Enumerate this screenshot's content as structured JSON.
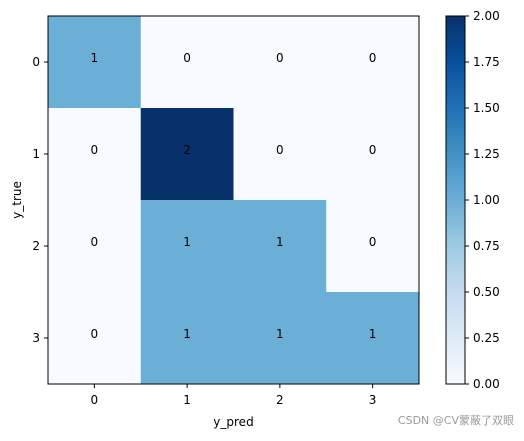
{
  "chart_data": {
    "type": "heatmap",
    "title": "",
    "xlabel": "y_pred",
    "ylabel": "y_true",
    "x_categories": [
      "0",
      "1",
      "2",
      "3"
    ],
    "y_categories": [
      "0",
      "1",
      "2",
      "3"
    ],
    "values": [
      [
        1,
        0,
        0,
        0
      ],
      [
        0,
        2,
        0,
        0
      ],
      [
        0,
        1,
        1,
        0
      ],
      [
        0,
        1,
        1,
        1
      ]
    ],
    "cell_labels": [
      [
        "1",
        "0",
        "0",
        "0"
      ],
      [
        "0",
        "2",
        "0",
        "0"
      ],
      [
        "0",
        "1",
        "1",
        "0"
      ],
      [
        "0",
        "1",
        "1",
        "1"
      ]
    ],
    "colormap": "Blues",
    "colors": {
      "low": "#f7fbff",
      "mid": "#6baed6",
      "high": "#08306b"
    },
    "colorbar": {
      "range": [
        0,
        2
      ],
      "ticks": [
        0,
        0.25,
        0.5,
        0.75,
        1,
        1.25,
        1.5,
        1.75,
        2
      ],
      "tick_labels": [
        "0.00",
        "0.25",
        "0.50",
        "0.75",
        "1.00",
        "1.25",
        "1.50",
        "1.75",
        "2.00"
      ]
    },
    "grid": false,
    "legend": "none"
  },
  "watermark": "CSDN @CV蒙蔽了双眼"
}
